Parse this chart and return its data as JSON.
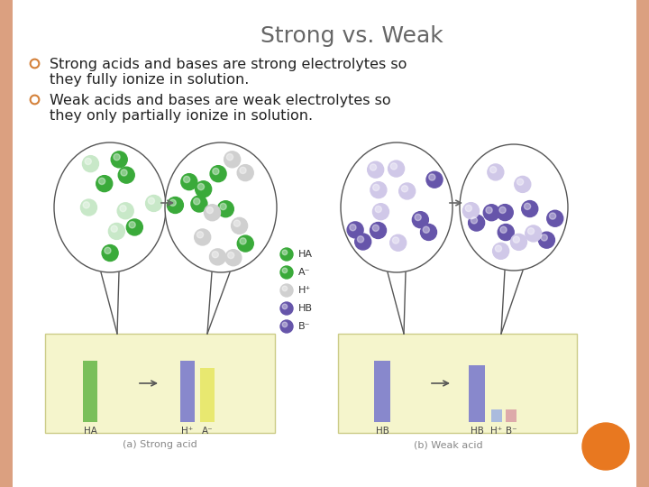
{
  "title": "Strong vs. Weak",
  "title_fontsize": 18,
  "title_color": "#666666",
  "bullet1_line1": "Strong acids and bases are strong electrolytes so",
  "bullet1_line2": "they fully ionize in solution.",
  "bullet2_line1": "Weak acids and bases are weak electrolytes so",
  "bullet2_line2": "they only partially ionize in solution.",
  "bullet_fontsize": 11.5,
  "bullet_color": "#222222",
  "bullet_marker_color": "#d4813a",
  "background_color": "#fcf0e8",
  "border_color": "#dba080",
  "slide_bg": "#ffffff",
  "green_dark": "#3aaa3a",
  "green_light": "#c8e8c8",
  "gray_dot": "#d0d0d0",
  "purple_dark": "#6655aa",
  "purple_light": "#d0c8e8",
  "box_bg": "#f5f5cc",
  "box_edge": "#cccc88",
  "bar_green": "#7abf5a",
  "bar_blue": "#8888cc",
  "bar_yellow": "#e8e870",
  "bar_hplus": "#aabbdd",
  "bar_bminus": "#ddaaaa",
  "orange_circle": "#e87820",
  "caption_color": "#888888",
  "caption_fontsize": 8,
  "legend_fontsize": 8
}
